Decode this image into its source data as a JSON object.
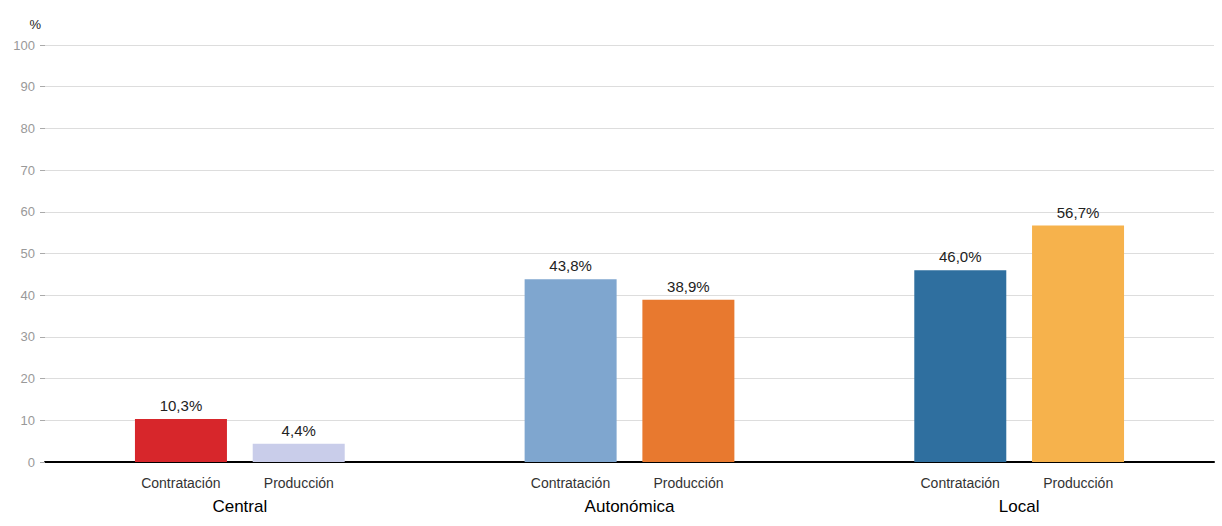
{
  "chart_data": {
    "type": "bar",
    "y_label": "%",
    "categories": [
      "Central",
      "Autonómica",
      "Local"
    ],
    "series": [
      {
        "name": "Contratación",
        "values": [
          10.3,
          43.8,
          46.0
        ],
        "value_labels": [
          "10,3%",
          "43,8%",
          "46,0%"
        ],
        "colors": [
          "#d7262b",
          "#7fa6cf",
          "#2f6f9f"
        ]
      },
      {
        "name": "Producción",
        "values": [
          4.4,
          38.9,
          56.7
        ],
        "value_labels": [
          "4,4%",
          "38,9%",
          "56,7%"
        ],
        "colors": [
          "#c9cdea",
          "#e8792f",
          "#f6b24c"
        ]
      }
    ],
    "ylim": [
      0,
      100
    ],
    "yticks": [
      0,
      10,
      20,
      30,
      40,
      50,
      60,
      70,
      80,
      90,
      100
    ],
    "grid": true,
    "data_labels": true
  }
}
